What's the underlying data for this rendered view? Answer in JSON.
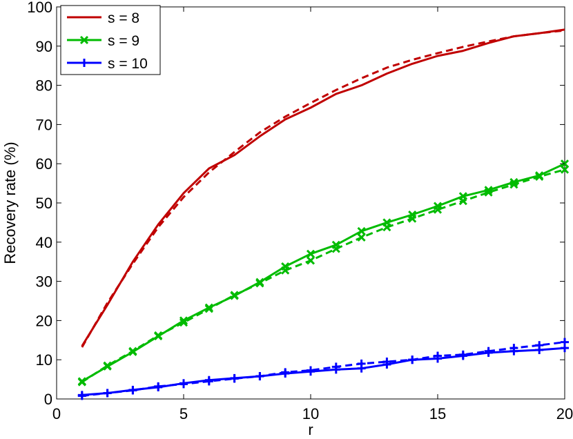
{
  "chart_data": {
    "type": "line",
    "xlabel": "r",
    "ylabel": "Recovery rate (%)",
    "xlim": [
      0,
      20
    ],
    "ylim": [
      0,
      100
    ],
    "xticks": [
      "0",
      "5",
      "10",
      "15",
      "20"
    ],
    "yticks": [
      "0",
      "10",
      "20",
      "30",
      "40",
      "50",
      "60",
      "70",
      "80",
      "90",
      "100"
    ],
    "grid": false,
    "legend_position": "top-left",
    "x": [
      1,
      2,
      3,
      4,
      5,
      6,
      7,
      8,
      9,
      10,
      11,
      12,
      13,
      14,
      15,
      16,
      17,
      18,
      19,
      20
    ],
    "series": [
      {
        "name": "s = 8",
        "color": "#c00000",
        "marker": "none",
        "solid": [
          13.5,
          24.0,
          35.0,
          44.5,
          52.5,
          58.8,
          62.2,
          67.0,
          71.3,
          74.3,
          77.8,
          80.0,
          83.0,
          85.5,
          87.5,
          88.8,
          90.8,
          92.5,
          93.3,
          94.2
        ],
        "dashed": [
          13.2,
          24.5,
          34.5,
          43.8,
          51.5,
          57.8,
          63.0,
          68.0,
          72.0,
          75.5,
          78.8,
          81.8,
          84.5,
          86.5,
          88.2,
          89.8,
          91.2,
          92.5,
          93.3,
          94.0
        ]
      },
      {
        "name": "s = 9",
        "color": "#00bb00",
        "marker": "x",
        "solid": [
          4.5,
          8.3,
          12.0,
          16.0,
          20.0,
          23.3,
          26.3,
          29.8,
          33.8,
          37.0,
          39.3,
          42.8,
          45.0,
          47.0,
          49.2,
          51.7,
          53.3,
          55.3,
          57.0,
          60.0
        ],
        "dashed": [
          4.3,
          8.5,
          12.2,
          16.2,
          19.5,
          23.0,
          26.5,
          29.5,
          32.8,
          35.3,
          38.3,
          41.2,
          43.8,
          46.0,
          48.3,
          50.5,
          52.7,
          54.7,
          56.7,
          58.5
        ]
      },
      {
        "name": "s = 10",
        "color": "#0000ff",
        "marker": "+",
        "solid": [
          1.0,
          1.5,
          2.3,
          3.0,
          4.0,
          4.8,
          5.3,
          5.8,
          6.5,
          7.0,
          7.5,
          7.8,
          8.8,
          10.0,
          10.3,
          11.0,
          11.8,
          12.2,
          12.5,
          13.0
        ],
        "dashed": [
          0.8,
          1.5,
          2.2,
          3.2,
          3.8,
          4.5,
          5.2,
          5.8,
          6.8,
          7.3,
          8.2,
          9.0,
          9.5,
          10.0,
          11.0,
          11.3,
          12.2,
          13.0,
          13.7,
          14.5
        ]
      }
    ]
  }
}
